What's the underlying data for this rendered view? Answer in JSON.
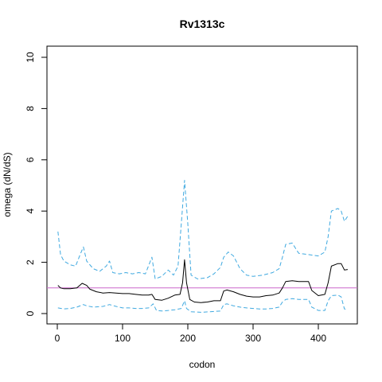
{
  "chart_data": {
    "type": "line",
    "title": "Rv1313c",
    "xlabel": "codon",
    "ylabel": "omega (dN/dS)",
    "xlim": [
      0,
      450
    ],
    "ylim": [
      0,
      10
    ],
    "x_ticks": [
      0,
      100,
      200,
      300,
      400
    ],
    "y_ticks": [
      0,
      2,
      4,
      6,
      8,
      10
    ],
    "reference_line": {
      "y": 1,
      "color": "#cc66cc"
    },
    "grid": false,
    "colors": {
      "omega": "#000000",
      "bounds": "#3fa9e0"
    },
    "series": [
      {
        "style": "solid",
        "points": [
          [
            1,
            1.1
          ],
          [
            5,
            1.0
          ],
          [
            10,
            0.97
          ],
          [
            20,
            0.97
          ],
          [
            30,
            1.0
          ],
          [
            38,
            1.18
          ],
          [
            45,
            1.1
          ],
          [
            50,
            0.95
          ],
          [
            60,
            0.85
          ],
          [
            70,
            0.8
          ],
          [
            80,
            0.82
          ],
          [
            90,
            0.8
          ],
          [
            100,
            0.78
          ],
          [
            110,
            0.78
          ],
          [
            120,
            0.75
          ],
          [
            130,
            0.72
          ],
          [
            140,
            0.72
          ],
          [
            145,
            0.75
          ],
          [
            150,
            0.55
          ],
          [
            160,
            0.52
          ],
          [
            170,
            0.6
          ],
          [
            180,
            0.72
          ],
          [
            188,
            0.75
          ],
          [
            192,
            1.2
          ],
          [
            195,
            2.1
          ],
          [
            198,
            1.2
          ],
          [
            203,
            0.55
          ],
          [
            210,
            0.45
          ],
          [
            220,
            0.43
          ],
          [
            230,
            0.45
          ],
          [
            240,
            0.5
          ],
          [
            250,
            0.5
          ],
          [
            255,
            0.88
          ],
          [
            260,
            0.92
          ],
          [
            270,
            0.85
          ],
          [
            280,
            0.75
          ],
          [
            290,
            0.68
          ],
          [
            300,
            0.65
          ],
          [
            310,
            0.65
          ],
          [
            320,
            0.7
          ],
          [
            330,
            0.72
          ],
          [
            340,
            0.8
          ],
          [
            345,
            1.0
          ],
          [
            350,
            1.25
          ],
          [
            360,
            1.28
          ],
          [
            370,
            1.25
          ],
          [
            380,
            1.25
          ],
          [
            385,
            1.25
          ],
          [
            390,
            0.9
          ],
          [
            400,
            0.7
          ],
          [
            410,
            0.75
          ],
          [
            415,
            1.2
          ],
          [
            420,
            1.85
          ],
          [
            430,
            1.95
          ],
          [
            435,
            1.95
          ],
          [
            440,
            1.7
          ],
          [
            445,
            1.72
          ]
        ]
      },
      {
        "style": "dashed",
        "points": [
          [
            1,
            3.2
          ],
          [
            5,
            2.3
          ],
          [
            10,
            2.05
          ],
          [
            20,
            1.9
          ],
          [
            28,
            1.85
          ],
          [
            35,
            2.3
          ],
          [
            40,
            2.6
          ],
          [
            45,
            2.05
          ],
          [
            55,
            1.75
          ],
          [
            65,
            1.65
          ],
          [
            75,
            1.85
          ],
          [
            80,
            2.05
          ],
          [
            85,
            1.6
          ],
          [
            95,
            1.55
          ],
          [
            105,
            1.6
          ],
          [
            115,
            1.55
          ],
          [
            125,
            1.6
          ],
          [
            135,
            1.55
          ],
          [
            145,
            2.2
          ],
          [
            150,
            1.35
          ],
          [
            160,
            1.45
          ],
          [
            170,
            1.7
          ],
          [
            178,
            1.5
          ],
          [
            185,
            1.85
          ],
          [
            190,
            3.5
          ],
          [
            195,
            5.2
          ],
          [
            200,
            3.5
          ],
          [
            205,
            1.5
          ],
          [
            215,
            1.35
          ],
          [
            230,
            1.4
          ],
          [
            240,
            1.55
          ],
          [
            250,
            1.8
          ],
          [
            255,
            2.2
          ],
          [
            262,
            2.4
          ],
          [
            270,
            2.25
          ],
          [
            280,
            1.75
          ],
          [
            290,
            1.5
          ],
          [
            300,
            1.45
          ],
          [
            315,
            1.5
          ],
          [
            330,
            1.6
          ],
          [
            340,
            1.75
          ],
          [
            345,
            2.2
          ],
          [
            350,
            2.7
          ],
          [
            360,
            2.75
          ],
          [
            365,
            2.55
          ],
          [
            370,
            2.35
          ],
          [
            385,
            2.3
          ],
          [
            400,
            2.25
          ],
          [
            410,
            2.4
          ],
          [
            415,
            3.0
          ],
          [
            420,
            4.0
          ],
          [
            430,
            4.1
          ],
          [
            435,
            4.0
          ],
          [
            440,
            3.6
          ],
          [
            445,
            3.8
          ]
        ]
      },
      {
        "style": "dashed",
        "points": [
          [
            1,
            0.22
          ],
          [
            10,
            0.18
          ],
          [
            20,
            0.2
          ],
          [
            30,
            0.25
          ],
          [
            40,
            0.35
          ],
          [
            45,
            0.3
          ],
          [
            55,
            0.25
          ],
          [
            70,
            0.28
          ],
          [
            80,
            0.35
          ],
          [
            90,
            0.28
          ],
          [
            100,
            0.22
          ],
          [
            110,
            0.22
          ],
          [
            120,
            0.2
          ],
          [
            130,
            0.2
          ],
          [
            140,
            0.22
          ],
          [
            147,
            0.38
          ],
          [
            152,
            0.12
          ],
          [
            160,
            0.1
          ],
          [
            170,
            0.12
          ],
          [
            180,
            0.15
          ],
          [
            190,
            0.2
          ],
          [
            195,
            0.5
          ],
          [
            198,
            0.2
          ],
          [
            205,
            0.07
          ],
          [
            220,
            0.05
          ],
          [
            240,
            0.08
          ],
          [
            250,
            0.1
          ],
          [
            255,
            0.35
          ],
          [
            260,
            0.38
          ],
          [
            270,
            0.3
          ],
          [
            280,
            0.25
          ],
          [
            290,
            0.22
          ],
          [
            300,
            0.2
          ],
          [
            310,
            0.18
          ],
          [
            320,
            0.18
          ],
          [
            330,
            0.2
          ],
          [
            340,
            0.25
          ],
          [
            345,
            0.45
          ],
          [
            350,
            0.55
          ],
          [
            360,
            0.58
          ],
          [
            370,
            0.55
          ],
          [
            385,
            0.55
          ],
          [
            390,
            0.25
          ],
          [
            400,
            0.12
          ],
          [
            410,
            0.12
          ],
          [
            415,
            0.5
          ],
          [
            420,
            0.7
          ],
          [
            430,
            0.72
          ],
          [
            435,
            0.65
          ],
          [
            440,
            0.18
          ],
          [
            445,
            0.17
          ]
        ]
      }
    ]
  }
}
